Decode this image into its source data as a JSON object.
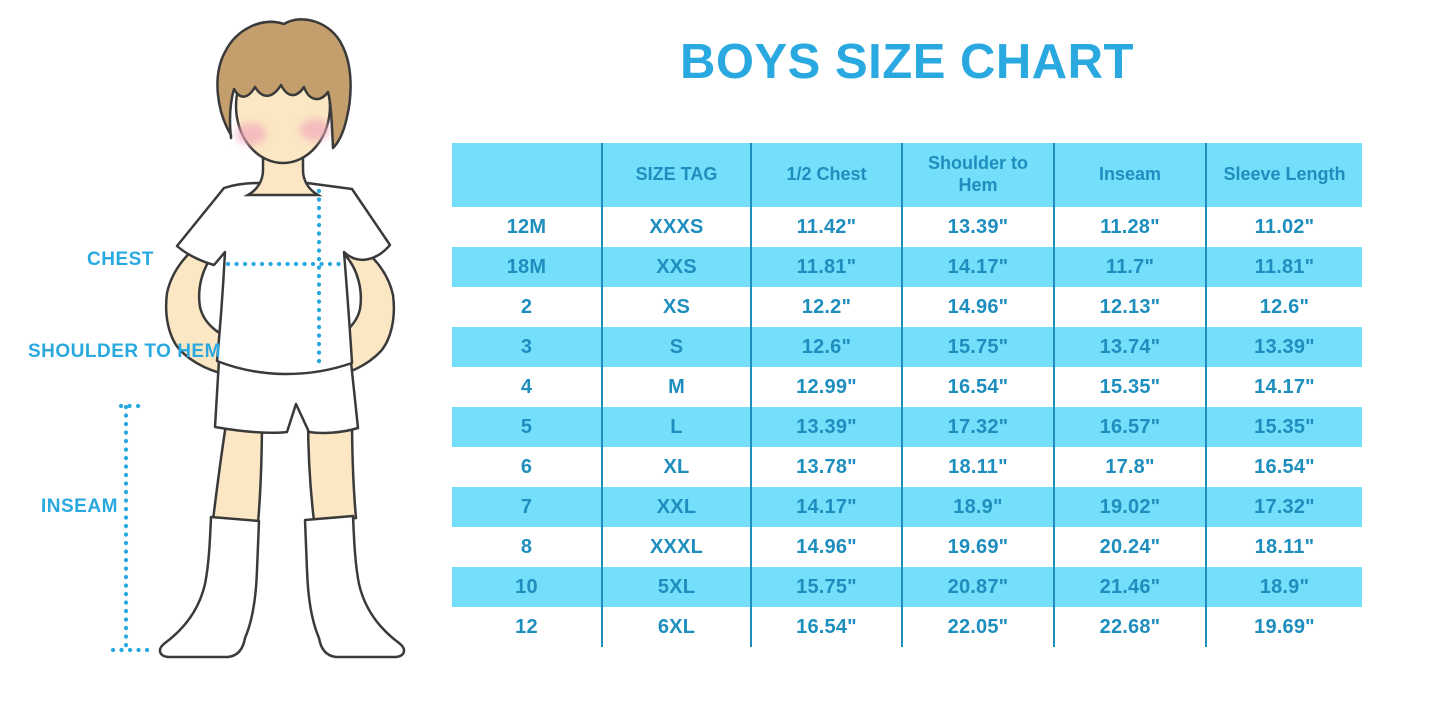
{
  "title": "BOYS SIZE CHART",
  "figure_labels": {
    "chest": "CHEST",
    "shoulder_to_hem": "SHOULDER TO HEM",
    "inseam": "INSEAM"
  },
  "chart_data": {
    "type": "table",
    "title": "BOYS SIZE CHART",
    "columns": [
      "",
      "SIZE TAG",
      "1/2 Chest",
      "Shoulder to Hem",
      "Inseam",
      "Sleeve Length"
    ],
    "rows": [
      [
        "12M",
        "XXXS",
        "11.42\"",
        "13.39\"",
        "11.28\"",
        "11.02\""
      ],
      [
        "18M",
        "XXS",
        "11.81\"",
        "14.17\"",
        "11.7\"",
        "11.81\""
      ],
      [
        "2",
        "XS",
        "12.2\"",
        "14.96\"",
        "12.13\"",
        "12.6\""
      ],
      [
        "3",
        "S",
        "12.6\"",
        "15.75\"",
        "13.74\"",
        "13.39\""
      ],
      [
        "4",
        "M",
        "12.99\"",
        "16.54\"",
        "15.35\"",
        "14.17\""
      ],
      [
        "5",
        "L",
        "13.39\"",
        "17.32\"",
        "16.57\"",
        "15.35\""
      ],
      [
        "6",
        "XL",
        "13.78\"",
        "18.11\"",
        "17.8\"",
        "16.54\""
      ],
      [
        "7",
        "XXL",
        "14.17\"",
        "18.9\"",
        "19.02\"",
        "17.32\""
      ],
      [
        "8",
        "XXXL",
        "14.96\"",
        "19.69\"",
        "20.24\"",
        "18.11\""
      ],
      [
        "10",
        "5XL",
        "15.75\"",
        "20.87\"",
        "21.46\"",
        "18.9\""
      ],
      [
        "12",
        "6XL",
        "16.54\"",
        "22.05\"",
        "22.68\"",
        "19.69\""
      ]
    ],
    "layout": {
      "header_background": "#74DFFB",
      "alternating_row_background": "#74DFFB",
      "text_color": "#1D8EBE",
      "striped_rows": [
        "18M",
        "3",
        "5",
        "7",
        "10"
      ]
    }
  },
  "colors": {
    "accent_bright_blue": "#29A9E0",
    "table_text_blue": "#1D8EBE",
    "row_cyan": "#74DFFB",
    "skin": "#FBE7C3",
    "hair": "#C49E6C",
    "blush": "#F3A8BC",
    "outline": "#3A3A3A"
  }
}
